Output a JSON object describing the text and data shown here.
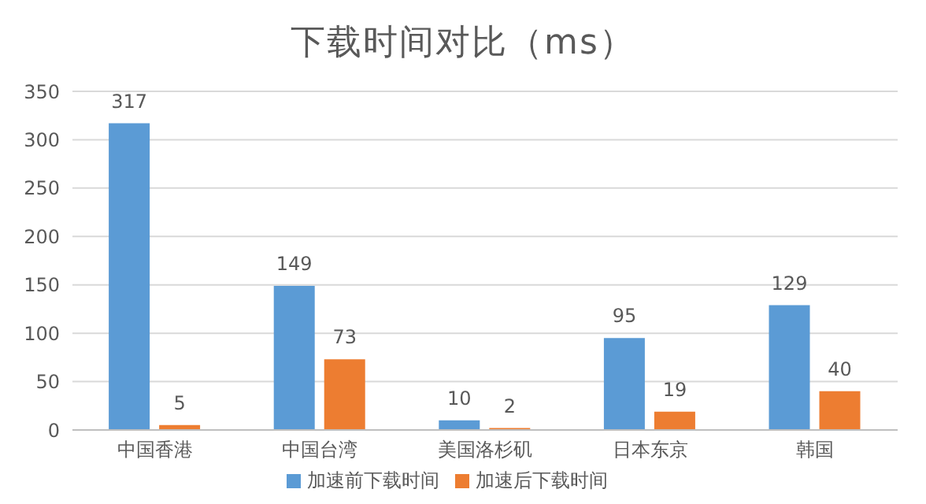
{
  "chart_data": {
    "type": "bar",
    "title": "下载时间对比（ms）",
    "categories": [
      "中国香港",
      "中国台湾",
      "美国洛杉矶",
      "日本东京",
      "韩国"
    ],
    "series": [
      {
        "name": "加速前下载时间",
        "color": "#5b9bd5",
        "values": [
          317,
          149,
          10,
          95,
          129
        ]
      },
      {
        "name": "加速后下载时间",
        "color": "#ed7d31",
        "values": [
          5,
          73,
          2,
          19,
          40
        ]
      }
    ],
    "ylim": [
      0,
      350
    ],
    "yticks": [
      0,
      50,
      100,
      150,
      200,
      250,
      300,
      350
    ],
    "grid": "y",
    "legend": "bottom",
    "data_labels": true
  }
}
